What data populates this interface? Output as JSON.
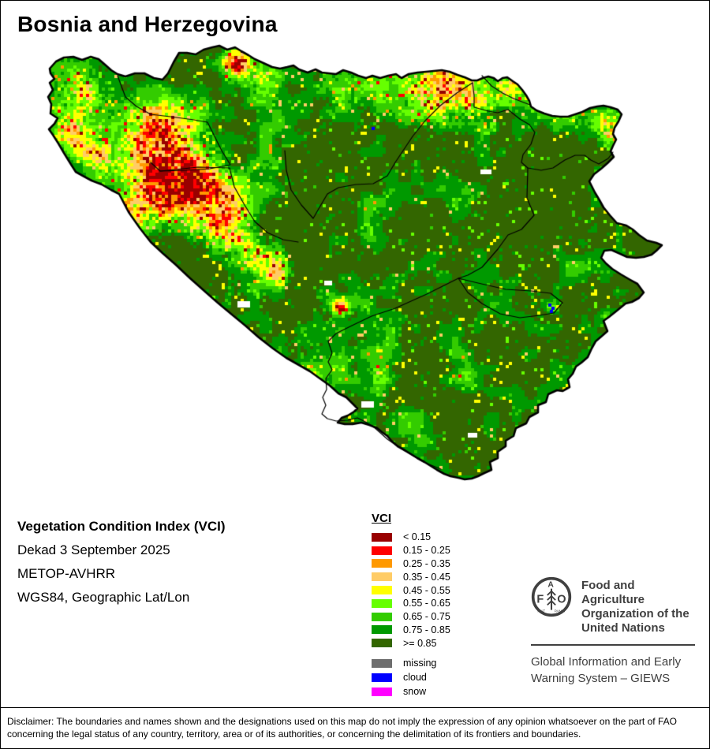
{
  "title": "Bosnia and Herzegovina",
  "info": {
    "product": "Vegetation Condition Index (VCI)",
    "dekad": "Dekad 3 September 2025",
    "sensor": "METOP-AVHRR",
    "projection": "WGS84, Geographic Lat/Lon"
  },
  "legend": {
    "title": "VCI",
    "classes": [
      {
        "label": "< 0.15",
        "color": "#990000"
      },
      {
        "label": "0.15 - 0.25",
        "color": "#FF0000"
      },
      {
        "label": "0.25 - 0.35",
        "color": "#FF9900"
      },
      {
        "label": "0.35 - 0.45",
        "color": "#FFCC66"
      },
      {
        "label": "0.45 - 0.55",
        "color": "#FFFF00"
      },
      {
        "label": "0.55 - 0.65",
        "color": "#66FF00"
      },
      {
        "label": "0.65 - 0.75",
        "color": "#33CC00"
      },
      {
        "label": "0.75 - 0.85",
        "color": "#009900"
      },
      {
        "label": ">= 0.85",
        "color": "#336600"
      }
    ],
    "extras": [
      {
        "label": "missing",
        "color": "#6E6E6E"
      },
      {
        "label": "cloud",
        "color": "#0000FF"
      },
      {
        "label": "snow",
        "color": "#FF00FF"
      }
    ]
  },
  "fao": {
    "org_lines": [
      "Food and Agriculture",
      "Organization of the",
      "United Nations"
    ],
    "giews_lines": [
      "Global Information and Early",
      "Warning System – GIEWS"
    ],
    "logo_letters": [
      "F",
      "A",
      "O"
    ],
    "motto": [
      "FIAT",
      "PANIS"
    ]
  },
  "disclaimer_lines": [
    "Disclaimer: The boundaries and names shown and the designations used on this map do not imply the expression of any opinion whatsoever on the part of FAO",
    "concerning the legal status of any country, territory, area or of its authorities, or concerning the delimitation of its frontiers and boundaries."
  ],
  "map": {
    "border_color": "#000000",
    "background": "#FFFFFF",
    "outline": [
      [
        62,
        86
      ],
      [
        70,
        77
      ],
      [
        80,
        72
      ],
      [
        92,
        71
      ],
      [
        103,
        75
      ],
      [
        114,
        71
      ],
      [
        124,
        74
      ],
      [
        131,
        80
      ],
      [
        140,
        88
      ],
      [
        148,
        93
      ],
      [
        158,
        96
      ],
      [
        170,
        92
      ],
      [
        182,
        92
      ],
      [
        194,
        98
      ],
      [
        205,
        100
      ],
      [
        212,
        92
      ],
      [
        219,
        78
      ],
      [
        226,
        66
      ],
      [
        236,
        66
      ],
      [
        247,
        68
      ],
      [
        257,
        62
      ],
      [
        268,
        59
      ],
      [
        277,
        57
      ],
      [
        287,
        62
      ],
      [
        297,
        59
      ],
      [
        305,
        64
      ],
      [
        314,
        69
      ],
      [
        322,
        74
      ],
      [
        333,
        79
      ],
      [
        344,
        84
      ],
      [
        354,
        86
      ],
      [
        363,
        84
      ],
      [
        371,
        82
      ],
      [
        378,
        87
      ],
      [
        389,
        91
      ],
      [
        399,
        87
      ],
      [
        407,
        91
      ],
      [
        416,
        92
      ],
      [
        425,
        93
      ],
      [
        434,
        88
      ],
      [
        444,
        91
      ],
      [
        453,
        95
      ],
      [
        463,
        98
      ],
      [
        471,
        95
      ],
      [
        481,
        98
      ],
      [
        491,
        95
      ],
      [
        501,
        93
      ],
      [
        508,
        98
      ],
      [
        517,
        93
      ],
      [
        528,
        91
      ],
      [
        539,
        90
      ],
      [
        549,
        89
      ],
      [
        559,
        88
      ],
      [
        569,
        90
      ],
      [
        579,
        94
      ],
      [
        588,
        97
      ],
      [
        597,
        101
      ],
      [
        604,
        101
      ],
      [
        611,
        98
      ],
      [
        618,
        96
      ],
      [
        625,
        98
      ],
      [
        630,
        102
      ],
      [
        636,
        98
      ],
      [
        642,
        97
      ],
      [
        649,
        102
      ],
      [
        655,
        106
      ],
      [
        661,
        113
      ],
      [
        666,
        120
      ],
      [
        670,
        127
      ],
      [
        672,
        134
      ],
      [
        679,
        139
      ],
      [
        689,
        143
      ],
      [
        699,
        146
      ],
      [
        709,
        147
      ],
      [
        719,
        147
      ],
      [
        728,
        144
      ],
      [
        737,
        141
      ],
      [
        747,
        136
      ],
      [
        756,
        134
      ],
      [
        764,
        133
      ],
      [
        773,
        135
      ],
      [
        782,
        138
      ],
      [
        787,
        144
      ],
      [
        783,
        153
      ],
      [
        778,
        161
      ],
      [
        776,
        169
      ],
      [
        780,
        176
      ],
      [
        776,
        184
      ],
      [
        773,
        191
      ],
      [
        777,
        198
      ],
      [
        769,
        206
      ],
      [
        761,
        213
      ],
      [
        752,
        220
      ],
      [
        746,
        229
      ],
      [
        753,
        243
      ],
      [
        759,
        253
      ],
      [
        764,
        262
      ],
      [
        772,
        272
      ],
      [
        781,
        282
      ],
      [
        793,
        285
      ],
      [
        801,
        290
      ],
      [
        809,
        297
      ],
      [
        819,
        304
      ],
      [
        831,
        307
      ],
      [
        838,
        310
      ],
      [
        831,
        317
      ],
      [
        825,
        322
      ],
      [
        815,
        325
      ],
      [
        805,
        326
      ],
      [
        794,
        325
      ],
      [
        783,
        320
      ],
      [
        774,
        316
      ],
      [
        765,
        317
      ],
      [
        761,
        326
      ],
      [
        767,
        333
      ],
      [
        775,
        340
      ],
      [
        786,
        347
      ],
      [
        798,
        354
      ],
      [
        807,
        359
      ],
      [
        815,
        370
      ],
      [
        809,
        377
      ],
      [
        800,
        382
      ],
      [
        792,
        384
      ],
      [
        781,
        393
      ],
      [
        771,
        401
      ],
      [
        764,
        406
      ],
      [
        769,
        419
      ],
      [
        761,
        426
      ],
      [
        754,
        432
      ],
      [
        749,
        441
      ],
      [
        744,
        452
      ],
      [
        736,
        459
      ],
      [
        729,
        464
      ],
      [
        725,
        473
      ],
      [
        719,
        480
      ],
      [
        721,
        490
      ],
      [
        712,
        495
      ],
      [
        705,
        494
      ],
      [
        694,
        499
      ],
      [
        691,
        509
      ],
      [
        681,
        513
      ],
      [
        681,
        522
      ],
      [
        670,
        528
      ],
      [
        666,
        536
      ],
      [
        653,
        542
      ],
      [
        650,
        552
      ],
      [
        640,
        558
      ],
      [
        640,
        565
      ],
      [
        630,
        572
      ],
      [
        630,
        580
      ],
      [
        620,
        585
      ],
      [
        622,
        595
      ],
      [
        613,
        599
      ],
      [
        605,
        603
      ],
      [
        597,
        606
      ],
      [
        588,
        607
      ],
      [
        580,
        605
      ],
      [
        570,
        603
      ],
      [
        562,
        600
      ],
      [
        553,
        595
      ],
      [
        545,
        590
      ],
      [
        537,
        585
      ],
      [
        528,
        580
      ],
      [
        520,
        575
      ],
      [
        512,
        570
      ],
      [
        503,
        565
      ],
      [
        495,
        558
      ],
      [
        490,
        552
      ],
      [
        483,
        547
      ],
      [
        477,
        542
      ],
      [
        467,
        538
      ],
      [
        457,
        535
      ],
      [
        446,
        537
      ],
      [
        436,
        537
      ],
      [
        427,
        535
      ],
      [
        432,
        529
      ],
      [
        440,
        526
      ],
      [
        448,
        521
      ],
      [
        452,
        517
      ],
      [
        445,
        510
      ],
      [
        438,
        503
      ],
      [
        428,
        498
      ],
      [
        417,
        488
      ],
      [
        403,
        478
      ],
      [
        392,
        470
      ],
      [
        378,
        462
      ],
      [
        362,
        453
      ],
      [
        345,
        441
      ],
      [
        327,
        427
      ],
      [
        310,
        412
      ],
      [
        293,
        398
      ],
      [
        275,
        383
      ],
      [
        258,
        368
      ],
      [
        240,
        352
      ],
      [
        222,
        335
      ],
      [
        205,
        320
      ],
      [
        190,
        306
      ],
      [
        176,
        288
      ],
      [
        162,
        268
      ],
      [
        150,
        245
      ],
      [
        140,
        240
      ],
      [
        128,
        233
      ],
      [
        115,
        228
      ],
      [
        104,
        222
      ],
      [
        95,
        217
      ],
      [
        88,
        206
      ],
      [
        80,
        193
      ],
      [
        73,
        181
      ],
      [
        66,
        170
      ],
      [
        61,
        163
      ],
      [
        68,
        156
      ],
      [
        72,
        149
      ],
      [
        63,
        143
      ],
      [
        64,
        131
      ],
      [
        60,
        122
      ],
      [
        66,
        113
      ],
      [
        62,
        104
      ],
      [
        68,
        99
      ],
      [
        63,
        92
      ]
    ],
    "internal_borders": [
      [
        [
          148,
          95
        ],
        [
          158,
          122
        ],
        [
          172,
          134
        ],
        [
          190,
          144
        ],
        [
          215,
          147
        ],
        [
          245,
          151
        ],
        [
          262,
          154
        ],
        [
          270,
          170
        ],
        [
          280,
          190
        ],
        [
          291,
          208
        ],
        [
          265,
          213
        ],
        [
          235,
          215
        ],
        [
          202,
          216
        ],
        [
          190,
          205
        ]
      ],
      [
        [
          202,
          216
        ],
        [
          250,
          211
        ],
        [
          290,
          212
        ],
        [
          296,
          236
        ],
        [
          309,
          259
        ],
        [
          322,
          280
        ],
        [
          338,
          294
        ],
        [
          358,
          303
        ],
        [
          377,
          306
        ]
      ],
      [
        [
          360,
          190
        ],
        [
          362,
          215
        ],
        [
          368,
          240
        ],
        [
          381,
          259
        ],
        [
          396,
          276
        ],
        [
          404,
          262
        ],
        [
          414,
          245
        ],
        [
          428,
          237
        ],
        [
          450,
          233
        ],
        [
          472,
          232
        ],
        [
          490,
          222
        ],
        [
          500,
          205
        ],
        [
          508,
          193
        ],
        [
          522,
          172
        ],
        [
          538,
          152
        ],
        [
          557,
          133
        ],
        [
          578,
          117
        ],
        [
          598,
          104
        ]
      ],
      [
        [
          598,
          104
        ],
        [
          600,
          120
        ],
        [
          600,
          135
        ],
        [
          618,
          140
        ],
        [
          630,
          142
        ],
        [
          643,
          138
        ],
        [
          658,
          150
        ],
        [
          670,
          157
        ],
        [
          677,
          167
        ],
        [
          672,
          182
        ],
        [
          662,
          195
        ],
        [
          660,
          205
        ],
        [
          668,
          212
        ],
        [
          685,
          215
        ],
        [
          700,
          212
        ],
        [
          715,
          202
        ],
        [
          728,
          196
        ],
        [
          740,
          196
        ],
        [
          748,
          202
        ],
        [
          758,
          207
        ],
        [
          770,
          200
        ],
        [
          776,
          192
        ]
      ],
      [
        [
          610,
          95
        ],
        [
          622,
          108
        ],
        [
          636,
          117
        ],
        [
          650,
          124
        ],
        [
          663,
          129
        ],
        [
          671,
          132
        ]
      ],
      [
        [
          668,
          212
        ],
        [
          667,
          250
        ],
        [
          676,
          272
        ],
        [
          660,
          290
        ],
        [
          643,
          297
        ],
        [
          630,
          315
        ],
        [
          610,
          338
        ],
        [
          592,
          348
        ],
        [
          580,
          352
        ],
        [
          605,
          358
        ],
        [
          640,
          366
        ],
        [
          672,
          368
        ],
        [
          697,
          371
        ],
        [
          712,
          383
        ],
        [
          701,
          396
        ],
        [
          683,
          399
        ],
        [
          658,
          402
        ],
        [
          633,
          397
        ],
        [
          610,
          384
        ],
        [
          592,
          370
        ],
        [
          580,
          352
        ]
      ],
      [
        [
          580,
          352
        ],
        [
          560,
          362
        ],
        [
          540,
          372
        ],
        [
          520,
          381
        ],
        [
          500,
          390
        ],
        [
          470,
          400
        ],
        [
          445,
          412
        ],
        [
          425,
          422
        ],
        [
          415,
          432
        ],
        [
          420,
          447
        ],
        [
          415,
          458
        ],
        [
          420,
          468
        ],
        [
          412,
          479
        ],
        [
          413,
          493
        ],
        [
          408,
          503
        ],
        [
          412,
          513
        ],
        [
          407,
          524
        ],
        [
          414,
          530
        ],
        [
          425,
          533
        ],
        [
          440,
          532
        ],
        [
          452,
          529
        ],
        [
          462,
          534
        ],
        [
          472,
          540
        ],
        [
          480,
          547
        ],
        [
          490,
          556
        ],
        [
          500,
          563
        ],
        [
          512,
          571
        ],
        [
          524,
          578
        ],
        [
          536,
          585
        ],
        [
          548,
          590
        ],
        [
          558,
          594
        ]
      ]
    ],
    "hotspots": [
      [
        100,
        115,
        45,
        0.62
      ],
      [
        85,
        165,
        30,
        0.5
      ],
      [
        122,
        198,
        34,
        0.48
      ],
      [
        195,
        170,
        48,
        0.6
      ],
      [
        232,
        226,
        60,
        1.0
      ],
      [
        172,
        255,
        42,
        0.45
      ],
      [
        282,
        282,
        46,
        0.5
      ],
      [
        320,
        318,
        34,
        0.42
      ],
      [
        350,
        343,
        28,
        0.52
      ],
      [
        298,
        78,
        22,
        1.05
      ],
      [
        332,
        100,
        30,
        0.5
      ],
      [
        430,
        107,
        36,
        0.32
      ],
      [
        552,
        108,
        50,
        0.66
      ],
      [
        606,
        128,
        40,
        0.52
      ],
      [
        648,
        112,
        26,
        0.45
      ],
      [
        718,
        150,
        30,
        0.32
      ],
      [
        770,
        155,
        28,
        0.62
      ],
      [
        782,
        180,
        18,
        0.45
      ],
      [
        845,
        300,
        22,
        0.3
      ],
      [
        430,
        389,
        13,
        0.85
      ],
      [
        480,
        477,
        26,
        0.3
      ],
      [
        590,
        478,
        20,
        0.35
      ],
      [
        700,
        390,
        11,
        0.5
      ],
      [
        843,
        388,
        14,
        0.42
      ],
      [
        660,
        563,
        16,
        0.3
      ],
      [
        760,
        225,
        18,
        0.3
      ],
      [
        680,
        300,
        24,
        0.22
      ],
      [
        230,
        230,
        160,
        0.18
      ],
      [
        520,
        120,
        120,
        0.15
      ],
      [
        430,
        450,
        120,
        0.12
      ]
    ],
    "white_patches": [
      [
        300,
        381,
        16,
        8
      ],
      [
        457,
        508,
        16,
        8
      ],
      [
        592,
        548,
        12,
        6
      ],
      [
        608,
        214,
        14,
        6
      ],
      [
        410,
        355,
        10,
        6
      ]
    ],
    "cloud_cells": [
      [
        694,
        384
      ],
      [
        698,
        388
      ],
      [
        696,
        392
      ],
      [
        470,
        160
      ]
    ]
  }
}
